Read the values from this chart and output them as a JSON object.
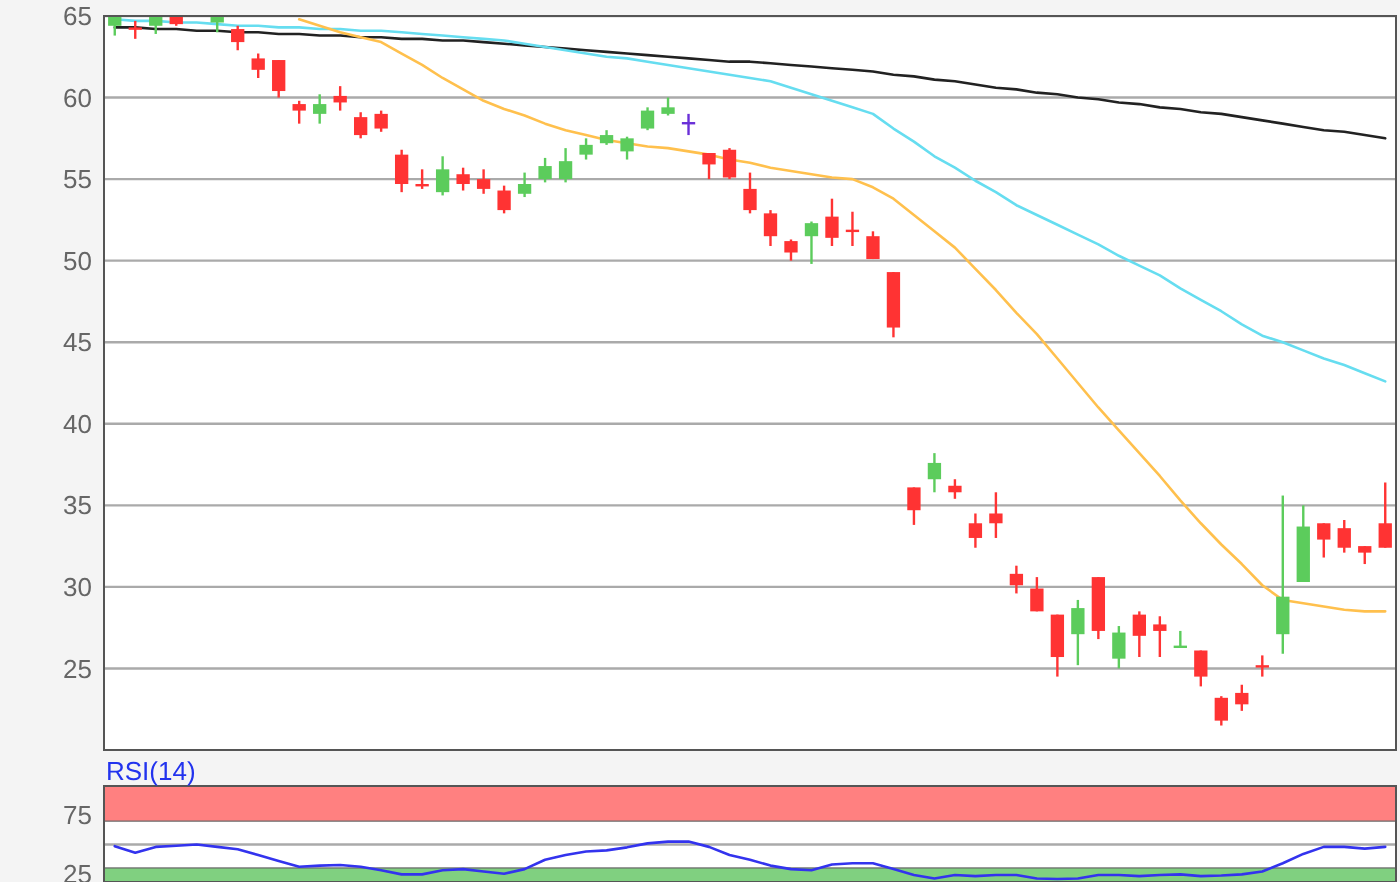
{
  "chart_data": [
    {
      "type": "candlestick",
      "categories": [
        null,
        null,
        null,
        null,
        null,
        null,
        null,
        null,
        null,
        null,
        null,
        null,
        null,
        null,
        null,
        null,
        null,
        null,
        null,
        null,
        null,
        null,
        null,
        null,
        null,
        null,
        null,
        null,
        null,
        null,
        null,
        null,
        null,
        null,
        null,
        null,
        null,
        null,
        null,
        null,
        null,
        null,
        null,
        null,
        null,
        null,
        null,
        null,
        null,
        null,
        null,
        null,
        null,
        null,
        null,
        null,
        null,
        null,
        null,
        null,
        null,
        null,
        null
      ],
      "ohlc": [
        [
          64.4,
          65,
          63.8,
          65
        ],
        [
          64.3,
          64.7,
          63.6,
          64.2
        ],
        [
          64.4,
          65,
          63.9,
          65
        ],
        [
          65,
          65,
          64.4,
          64.5
        ],
        null,
        [
          64.6,
          65,
          64.0,
          65
        ],
        [
          64.2,
          64.4,
          62.9,
          63.4
        ],
        [
          62.4,
          62.7,
          61.2,
          61.7
        ],
        [
          62.3,
          62.3,
          60.0,
          60.4
        ],
        [
          59.6,
          59.8,
          58.4,
          59.2
        ],
        [
          59.0,
          60.2,
          58.4,
          59.6
        ],
        [
          60.1,
          60.7,
          59.2,
          59.7
        ],
        [
          58.8,
          59.1,
          57.5,
          57.7
        ],
        [
          59.0,
          59.2,
          57.9,
          58.1
        ],
        [
          56.5,
          56.8,
          54.2,
          54.7
        ],
        [
          54.7,
          55.6,
          54.4,
          54.6
        ],
        [
          54.2,
          56.4,
          54.0,
          55.6
        ],
        [
          55.3,
          55.7,
          54.3,
          54.7
        ],
        [
          55.0,
          55.6,
          54.1,
          54.4
        ],
        [
          54.3,
          54.6,
          52.9,
          53.1
        ],
        [
          54.1,
          55.4,
          53.9,
          54.7
        ],
        [
          55.0,
          56.3,
          54.8,
          55.8
        ],
        [
          55.0,
          56.9,
          54.8,
          56.1
        ],
        [
          56.5,
          57.5,
          56.2,
          57.1
        ],
        [
          57.2,
          58.0,
          57.1,
          57.7
        ],
        [
          56.7,
          57.6,
          56.2,
          57.5
        ],
        [
          58.1,
          59.4,
          58.0,
          59.2
        ],
        [
          59.0,
          60.0,
          58.9,
          59.4
        ],
        [
          58.5,
          59.0,
          57.7,
          58.5
        ],
        [
          56.6,
          56.6,
          55.0,
          55.9
        ],
        [
          56.8,
          56.9,
          55.0,
          55.1
        ],
        [
          54.4,
          55.4,
          52.9,
          53.1
        ],
        [
          52.9,
          53.1,
          50.9,
          51.5
        ],
        [
          51.2,
          51.3,
          50.0,
          50.5
        ],
        [
          51.5,
          52.4,
          49.8,
          52.3
        ],
        [
          52.7,
          53.8,
          50.9,
          51.4
        ],
        [
          51.9,
          53.0,
          50.9,
          51.8
        ],
        [
          51.5,
          51.8,
          50.1,
          50.1
        ],
        [
          49.3,
          49.3,
          45.3,
          45.9
        ],
        [
          36.1,
          36.1,
          33.8,
          34.7
        ],
        [
          36.6,
          38.2,
          35.8,
          37.6
        ],
        [
          36.2,
          36.6,
          35.4,
          35.8
        ],
        [
          33.9,
          34.5,
          32.4,
          33.0
        ],
        [
          34.5,
          35.8,
          33.0,
          33.9
        ],
        [
          30.8,
          31.3,
          29.6,
          30.1
        ],
        [
          29.9,
          30.6,
          28.5,
          28.5
        ],
        [
          28.3,
          28.3,
          24.5,
          25.7
        ],
        [
          27.1,
          29.2,
          25.2,
          28.7
        ],
        [
          30.6,
          30.6,
          26.8,
          27.3
        ],
        [
          25.6,
          27.6,
          25.0,
          27.2
        ],
        [
          28.3,
          28.5,
          25.7,
          27.0
        ],
        [
          27.7,
          28.2,
          25.7,
          27.3
        ],
        [
          26.3,
          27.3,
          26.3,
          26.4
        ],
        [
          26.1,
          26.1,
          23.9,
          24.5
        ],
        [
          23.2,
          23.3,
          21.5,
          21.8
        ],
        [
          23.5,
          24.0,
          22.4,
          22.8
        ],
        [
          25.2,
          25.8,
          24.5,
          25.1
        ],
        [
          27.1,
          35.6,
          25.9,
          29.4
        ],
        [
          30.3,
          35.0,
          30.3,
          33.7
        ],
        [
          33.9,
          33.9,
          31.8,
          32.9
        ],
        [
          33.6,
          34.1,
          32.1,
          32.4
        ],
        [
          32.5,
          32.5,
          31.4,
          32.1
        ],
        [
          33.9,
          36.4,
          32.4,
          32.4
        ]
      ],
      "colors": [
        "#5ccc5c",
        "#ff3333",
        "#5ccc5c",
        "#ff3333",
        null,
        "#5ccc5c",
        "#ff3333",
        "#ff3333",
        "#ff3333",
        "#ff3333",
        "#5ccc5c",
        "#ff3333",
        "#ff3333",
        "#ff3333",
        "#ff3333",
        "#ff3333",
        "#5ccc5c",
        "#ff3333",
        "#ff3333",
        "#ff3333",
        "#5ccc5c",
        "#5ccc5c",
        "#5ccc5c",
        "#5ccc5c",
        "#5ccc5c",
        "#5ccc5c",
        "#5ccc5c",
        "#5ccc5c",
        "#6a2fd8",
        "#ff3333",
        "#ff3333",
        "#ff3333",
        "#ff3333",
        "#ff3333",
        "#5ccc5c",
        "#ff3333",
        "#ff3333",
        "#ff3333",
        "#ff3333",
        "#ff3333",
        "#5ccc5c",
        "#ff3333",
        "#ff3333",
        "#ff3333",
        "#ff3333",
        "#ff3333",
        "#ff3333",
        "#5ccc5c",
        "#ff3333",
        "#5ccc5c",
        "#ff3333",
        "#ff3333",
        "#5ccc5c",
        "#ff3333",
        "#ff3333",
        "#ff3333",
        "#ff3333",
        "#5ccc5c",
        "#5ccc5c",
        "#ff3333",
        "#ff3333",
        "#ff3333",
        "#ff3333"
      ],
      "series": [
        {
          "type": "line",
          "color": "#222222",
          "values": [
            64.3,
            64.3,
            64.2,
            64.2,
            64.1,
            64.1,
            64.0,
            64.0,
            63.9,
            63.9,
            63.8,
            63.8,
            63.7,
            63.7,
            63.6,
            63.6,
            63.5,
            63.5,
            63.4,
            63.3,
            63.2,
            63.1,
            63.0,
            62.9,
            62.8,
            62.7,
            62.6,
            62.5,
            62.4,
            62.3,
            62.2,
            62.2,
            62.1,
            62.0,
            61.9,
            61.8,
            61.7,
            61.6,
            61.4,
            61.3,
            61.1,
            61.0,
            60.8,
            60.6,
            60.5,
            60.3,
            60.2,
            60.0,
            59.9,
            59.7,
            59.6,
            59.4,
            59.3,
            59.1,
            59.0,
            58.8,
            58.6,
            58.4,
            58.2,
            58.0,
            57.9,
            57.7,
            57.5
          ]
        },
        {
          "type": "line",
          "color": "#66ddf0",
          "values": [
            64.8,
            64.7,
            64.7,
            64.6,
            64.6,
            64.5,
            64.4,
            64.4,
            64.3,
            64.3,
            64.2,
            64.2,
            64.1,
            64.1,
            64.0,
            63.9,
            63.8,
            63.7,
            63.6,
            63.5,
            63.3,
            63.1,
            62.9,
            62.7,
            62.5,
            62.4,
            62.2,
            62.0,
            61.8,
            61.6,
            61.4,
            61.2,
            61.0,
            60.6,
            60.2,
            59.8,
            59.4,
            59.0,
            58.1,
            57.3,
            56.4,
            55.7,
            54.9,
            54.2,
            53.4,
            52.8,
            52.2,
            51.6,
            51.0,
            50.3,
            49.7,
            49.1,
            48.3,
            47.6,
            46.9,
            46.1,
            45.4,
            45.0,
            44.5,
            44.0,
            43.6,
            43.1,
            42.6
          ]
        },
        {
          "type": "line",
          "color": "#ffc04d",
          "values": [
            null,
            null,
            null,
            null,
            null,
            null,
            null,
            null,
            null,
            64.8,
            64.4,
            64.0,
            63.7,
            63.4,
            62.7,
            62.0,
            61.2,
            60.5,
            59.8,
            59.3,
            58.9,
            58.4,
            58.0,
            57.7,
            57.4,
            57.2,
            57.0,
            56.9,
            56.7,
            56.5,
            56.2,
            56.0,
            55.7,
            55.5,
            55.3,
            55.1,
            55.0,
            54.5,
            53.8,
            52.8,
            51.8,
            50.8,
            49.5,
            48.2,
            46.8,
            45.5,
            44.0,
            42.5,
            41.0,
            39.6,
            38.2,
            36.8,
            35.3,
            33.9,
            32.6,
            31.4,
            30.1,
            29.2,
            29.0,
            28.8,
            28.6,
            28.5,
            28.5
          ]
        }
      ],
      "ylim": [
        20,
        65
      ],
      "yticks": [
        25,
        30,
        35,
        40,
        45,
        50,
        55,
        60,
        65
      ],
      "grid": "y"
    },
    {
      "type": "line",
      "title": "RSI(14)",
      "categories": [
        null,
        null,
        null,
        null,
        null,
        null,
        null,
        null,
        null,
        null,
        null,
        null,
        null,
        null,
        null,
        null,
        null,
        null,
        null,
        null,
        null,
        null,
        null,
        null,
        null,
        null,
        null,
        null,
        null,
        null,
        null,
        null,
        null,
        null,
        null,
        null,
        null,
        null,
        null,
        null,
        null,
        null,
        null,
        null,
        null,
        null,
        null,
        null,
        null,
        null,
        null,
        null,
        null,
        null,
        null,
        null,
        null,
        null,
        null,
        null,
        null,
        null,
        null
      ],
      "series": [
        {
          "color": "#3333ee",
          "values": [
            48.6,
            43,
            48,
            49,
            50,
            48,
            46,
            41,
            36,
            31,
            32,
            32.5,
            31,
            28,
            24.5,
            24.5,
            28,
            29,
            27,
            25,
            29,
            37,
            41,
            44,
            45,
            47.6,
            51,
            52.5,
            52.5,
            48,
            41,
            37,
            32,
            29,
            28,
            33,
            34,
            34,
            29,
            24,
            21,
            24,
            23,
            24,
            24,
            21,
            20.6,
            21,
            24,
            24,
            23,
            24,
            24.5,
            23,
            23.5,
            24.5,
            27,
            34,
            42,
            48,
            48,
            46.5,
            48
          ]
        }
      ],
      "ylim": [
        18,
        100
      ],
      "yticks": [
        25,
        75
      ],
      "bands": [
        {
          "axis": "y",
          "from": 70,
          "to": 100,
          "color": "#ff8080"
        },
        {
          "axis": "y",
          "from": 18,
          "to": 30,
          "color": "#80d080"
        }
      ],
      "ref_lines": [
        {
          "axis": "y",
          "value": 50,
          "color": "#aaaaaa"
        }
      ]
    }
  ]
}
